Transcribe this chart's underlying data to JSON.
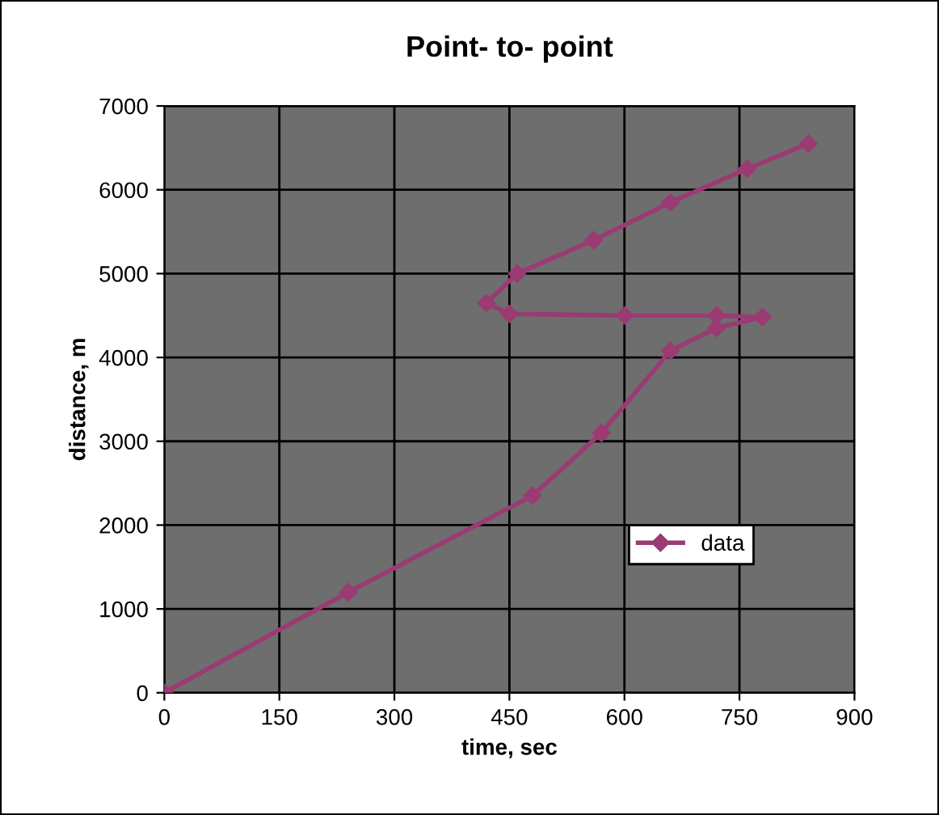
{
  "chart_data": {
    "type": "line",
    "title": "Point- to- point",
    "xlabel": "time, sec",
    "ylabel": "distance, m",
    "series": [
      {
        "name": "data",
        "color": "#9b3a73",
        "x": [
          0,
          240,
          480,
          570,
          660,
          720,
          780,
          720,
          600,
          450,
          420,
          460,
          560,
          660,
          760,
          840
        ],
        "values": [
          0,
          1200,
          2350,
          3100,
          4080,
          4350,
          4480,
          4500,
          4500,
          4520,
          4650,
          5000,
          5400,
          5850,
          6250,
          6550
        ]
      }
    ],
    "xlim": [
      0,
      900
    ],
    "xticks": [
      0,
      150,
      300,
      450,
      600,
      750,
      900
    ],
    "ylim": [
      0,
      7000
    ],
    "yticks": [
      0,
      1000,
      2000,
      3000,
      4000,
      5000,
      6000,
      7000
    ],
    "grid": true,
    "legend": "bottom right",
    "marker": "diamond",
    "line_style": "solid"
  }
}
